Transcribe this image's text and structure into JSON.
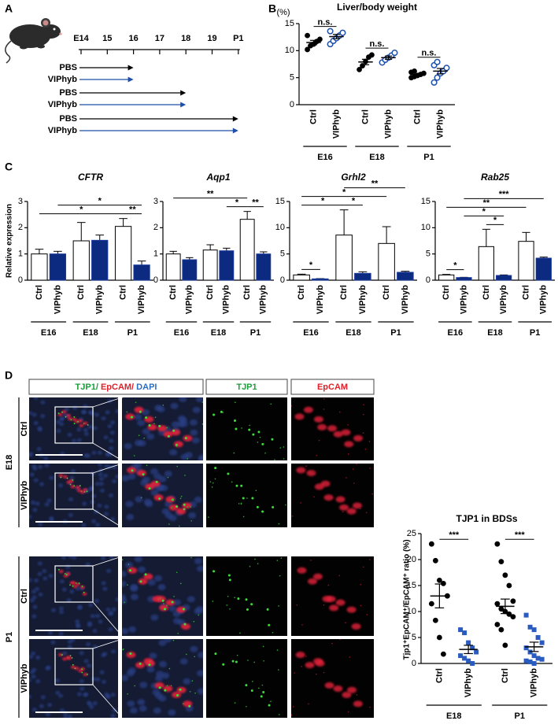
{
  "panels": [
    "A",
    "B",
    "C",
    "D"
  ],
  "timeline": {
    "ticks": [
      "E14",
      "15",
      "16",
      "17",
      "18",
      "19",
      "P1"
    ],
    "arrows": [
      {
        "label": "PBS",
        "color": "#000000",
        "end": 2
      },
      {
        "label": "VIPhyb",
        "color": "#1f4fa8",
        "end": 2
      },
      {
        "label": "PBS",
        "color": "#000000",
        "end": 4
      },
      {
        "label": "VIPhyb",
        "color": "#1f4fa8",
        "end": 4
      },
      {
        "label": "PBS",
        "color": "#000000",
        "end": 6
      },
      {
        "label": "VIPhyb",
        "color": "#1f4fa8",
        "end": 6
      }
    ]
  },
  "chart_data": [
    {
      "type": "dot",
      "title": "Liver/body weight",
      "y_unit": "(%)",
      "categories": [
        "E16",
        "E18",
        "P1"
      ],
      "series": [
        {
          "name": "Ctrl",
          "color": "#000000",
          "marker": "filled-circle",
          "values": [
            11.5,
            7.9,
            5.6
          ],
          "errors": [
            0.4,
            0.5,
            0.2
          ],
          "points": [
            [
              10.2,
              10.9,
              11.2,
              11.7,
              12.1,
              12.8
            ],
            [
              6.5,
              7.2,
              8.0,
              8.8,
              9.2
            ],
            [
              5.0,
              5.2,
              5.4,
              5.6,
              5.8,
              6.0,
              6.2
            ]
          ]
        },
        {
          "name": "VIPhyb",
          "color": "#1f4fa8",
          "marker": "open-circle",
          "values": [
            12.6,
            8.7,
            6.2
          ],
          "errors": [
            0.4,
            0.3,
            0.5
          ],
          "points": [
            [
              11.2,
              11.8,
              12.3,
              12.8,
              13.3,
              13.6
            ],
            [
              7.8,
              8.3,
              8.7,
              9.1,
              9.6
            ],
            [
              4.1,
              5.0,
              5.8,
              6.2,
              6.8,
              7.3,
              7.9
            ]
          ]
        }
      ],
      "annotations": [
        {
          "text": "n.s.",
          "from": [
            0,
            0
          ],
          "to": [
            0,
            1
          ]
        },
        {
          "text": "n.s.",
          "from": [
            1,
            0
          ],
          "to": [
            1,
            1
          ]
        },
        {
          "text": "n.s.",
          "from": [
            2,
            0
          ],
          "to": [
            2,
            1
          ]
        }
      ],
      "ylim": [
        0,
        15
      ],
      "yticks": [
        0,
        5,
        10,
        15
      ]
    },
    {
      "type": "bar",
      "title": "CFTR",
      "ylabel": "Relative expression",
      "categories": [
        "E16",
        "E18",
        "P1"
      ],
      "series": [
        {
          "name": "Ctrl",
          "color": "#000000",
          "fill": "#ffffff",
          "values": [
            1.0,
            1.5,
            2.05
          ],
          "errors": [
            0.18,
            0.7,
            0.3
          ]
        },
        {
          "name": "VIPhyb",
          "color": "#1a3a9c",
          "fill": "#0b2a80",
          "values": [
            1.0,
            1.52,
            0.58
          ],
          "errors": [
            0.1,
            0.2,
            0.15
          ]
        }
      ],
      "annotations": [
        {
          "text": "**",
          "from": [
            2,
            0
          ],
          "to": [
            2,
            1
          ]
        },
        {
          "text": "*",
          "from": [
            0,
            0
          ],
          "to": [
            2,
            0
          ]
        },
        {
          "text": "*",
          "from": [
            0,
            1
          ],
          "to": [
            2,
            1
          ]
        }
      ],
      "ylim": [
        0,
        3
      ],
      "yticks": [
        0,
        1,
        2,
        3
      ]
    },
    {
      "type": "bar",
      "title": "Aqp1",
      "categories": [
        "E16",
        "E18",
        "P1"
      ],
      "series": [
        {
          "name": "Ctrl",
          "color": "#000000",
          "fill": "#ffffff",
          "values": [
            1.0,
            1.15,
            2.32
          ],
          "errors": [
            0.1,
            0.2,
            0.3
          ]
        },
        {
          "name": "VIPhyb",
          "color": "#1a3a9c",
          "fill": "#0b2a80",
          "values": [
            0.78,
            1.12,
            1.0
          ],
          "errors": [
            0.08,
            0.1,
            0.08
          ]
        }
      ],
      "annotations": [
        {
          "text": "**",
          "from": [
            2,
            0
          ],
          "to": [
            2,
            1
          ]
        },
        {
          "text": "*",
          "from": [
            1,
            1
          ],
          "to": [
            2,
            0
          ]
        },
        {
          "text": "**",
          "from": [
            0,
            0
          ],
          "to": [
            2,
            0
          ]
        }
      ],
      "ylim": [
        0,
        3
      ],
      "yticks": [
        0,
        1,
        2,
        3
      ]
    },
    {
      "type": "bar",
      "title": "Grhl2",
      "categories": [
        "E16",
        "E18",
        "P1"
      ],
      "series": [
        {
          "name": "Ctrl",
          "color": "#000000",
          "fill": "#ffffff",
          "values": [
            1.0,
            8.6,
            7.0
          ],
          "errors": [
            0.15,
            4.8,
            3.2
          ]
        },
        {
          "name": "VIPhyb",
          "color": "#1a3a9c",
          "fill": "#0b2a80",
          "values": [
            0.25,
            1.3,
            1.5
          ],
          "errors": [
            0.05,
            0.3,
            0.2
          ]
        }
      ],
      "annotations": [
        {
          "text": "*",
          "from": [
            0,
            0
          ],
          "to": [
            0,
            1
          ]
        },
        {
          "text": "*",
          "from": [
            0,
            0
          ],
          "to": [
            1,
            0
          ]
        },
        {
          "text": "*",
          "from": [
            1,
            0
          ],
          "to": [
            1,
            1
          ]
        },
        {
          "text": "*",
          "from": [
            0,
            0
          ],
          "to": [
            2,
            0
          ]
        },
        {
          "text": "**",
          "from": [
            1,
            0
          ],
          "to": [
            2,
            1
          ]
        }
      ],
      "ylim": [
        0,
        15
      ],
      "yticks": [
        0,
        5,
        10,
        15
      ]
    },
    {
      "type": "bar",
      "title": "Rab25",
      "categories": [
        "E16",
        "E18",
        "P1"
      ],
      "series": [
        {
          "name": "Ctrl",
          "color": "#000000",
          "fill": "#ffffff",
          "values": [
            1.0,
            6.4,
            7.4
          ],
          "errors": [
            0.1,
            3.3,
            1.7
          ]
        },
        {
          "name": "VIPhyb",
          "color": "#1a3a9c",
          "fill": "#0b2a80",
          "values": [
            0.5,
            0.9,
            4.2
          ],
          "errors": [
            0.05,
            0.1,
            0.2
          ]
        }
      ],
      "annotations": [
        {
          "text": "*",
          "from": [
            0,
            0
          ],
          "to": [
            0,
            1
          ]
        },
        {
          "text": "*",
          "from": [
            1,
            0
          ],
          "to": [
            1,
            1
          ]
        },
        {
          "text": "*",
          "from": [
            0,
            1
          ],
          "to": [
            1,
            1
          ]
        },
        {
          "text": "**",
          "from": [
            0,
            0
          ],
          "to": [
            2,
            0
          ]
        },
        {
          "text": "***",
          "from": [
            0,
            1
          ],
          "to": [
            2,
            1
          ]
        }
      ],
      "ylim": [
        0,
        15
      ],
      "yticks": [
        0,
        5,
        10,
        15
      ]
    },
    {
      "type": "dot",
      "title": "TJP1 in BDSs",
      "ylabel": "Tjp1⁺EpCAM⁺/EpCAM⁺ ratio (%)",
      "categories": [
        "E18",
        "P1"
      ],
      "series": [
        {
          "name": "Ctrl",
          "color": "#000000",
          "marker": "filled-circle",
          "values": [
            13.0,
            11.0
          ],
          "errors": [
            2.3,
            1.4
          ],
          "points": [
            [
              23,
              19.8,
              16,
              15.4,
              13,
              11.5,
              8.3,
              5,
              1.8
            ],
            [
              23,
              19.6,
              17,
              15,
              12,
              11.5,
              10.5,
              10,
              9.5,
              9,
              7.5,
              6.5,
              3.5
            ]
          ]
        },
        {
          "name": "VIPhyb",
          "color": "#2a5cc0",
          "marker": "filled-square",
          "values": [
            2.7,
            3.2
          ],
          "errors": [
            0.8,
            0.9
          ],
          "points": [
            [
              6.5,
              5.9,
              4.0,
              3.0,
              2.2,
              1.5,
              1.0,
              0.5,
              0
            ],
            [
              9.3,
              7.0,
              6.5,
              5.0,
              4.0,
              3.0,
              2.2,
              1.5,
              1.0,
              0.8,
              0.5,
              0.3,
              0
            ]
          ]
        }
      ],
      "annotations": [
        {
          "text": "***",
          "from": [
            0,
            0
          ],
          "to": [
            0,
            1
          ]
        },
        {
          "text": "***",
          "from": [
            1,
            0
          ],
          "to": [
            1,
            1
          ]
        }
      ],
      "ylim": [
        0,
        25
      ],
      "yticks": [
        0,
        5,
        10,
        15,
        20,
        25
      ]
    }
  ],
  "micrographs": {
    "columns": [
      [
        {
          "text": "TJP1/",
          "color": "#1a9e3a"
        },
        {
          "text": " EpCAM/",
          "color": "#e0202a"
        },
        {
          "text": " DAPI",
          "color": "#2a6fc0"
        }
      ],
      [
        {
          "text": "TJP1",
          "color": "#1a9e3a"
        }
      ],
      [
        {
          "text": "EpCAM",
          "color": "#e0202a"
        }
      ]
    ],
    "stages": [
      {
        "label": "E18",
        "rows": [
          "Ctrl",
          "VIPhyb"
        ]
      },
      {
        "label": "P1",
        "rows": [
          "Ctrl",
          "VIPhyb"
        ]
      }
    ]
  }
}
